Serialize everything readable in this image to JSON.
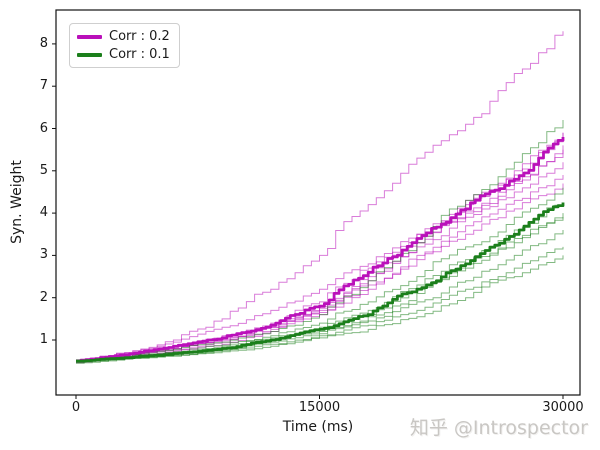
{
  "figure": {
    "background": "#ffffff"
  },
  "watermark": {
    "text": "知乎 @Introspector",
    "color": "#c9c7c4"
  },
  "chart_data": {
    "type": "line",
    "subtype": "step",
    "title": "",
    "xlabel": "Time (ms)",
    "ylabel": "Syn. Weight",
    "xlim": [
      -1300,
      31300
    ],
    "ylim": [
      -0.3,
      8.85
    ],
    "grid": false,
    "xticks": [
      0,
      15000,
      30000
    ],
    "xtick_labels": [
      "0",
      "15000",
      "30000"
    ],
    "yticks": [
      1,
      2,
      3,
      4,
      5,
      6,
      7,
      8
    ],
    "ytick_labels": [
      "1",
      "2",
      "3",
      "4",
      "5",
      "6",
      "7",
      "8"
    ],
    "legend": {
      "position": "upper-left",
      "entries": [
        {
          "label": "Corr : 0.2",
          "color": "#ba10ba"
        },
        {
          "label": "Corr : 0.1",
          "color": "#1b7f1b"
        }
      ]
    },
    "x_waypoints": [
      0,
      3000,
      6000,
      9000,
      12000,
      15000,
      18000,
      21000,
      24000,
      27000,
      30000
    ],
    "series": [
      {
        "name": "corr0.2-trial-1",
        "group": "Corr : 0.2",
        "color": "#ba10ba",
        "role": "trial",
        "values": [
          0.5,
          0.7,
          1.0,
          1.5,
          2.2,
          3.0,
          4.2,
          5.3,
          6.1,
          7.3,
          8.3
        ]
      },
      {
        "name": "corr0.2-trial-2",
        "group": "Corr : 0.2",
        "color": "#ba10ba",
        "role": "trial",
        "values": [
          0.48,
          0.7,
          0.95,
          1.3,
          1.7,
          2.2,
          2.8,
          3.5,
          4.3,
          5.0,
          5.9
        ]
      },
      {
        "name": "corr0.2-trial-3",
        "group": "Corr : 0.2",
        "color": "#ba10ba",
        "role": "trial",
        "values": [
          0.52,
          0.65,
          0.85,
          1.1,
          1.4,
          1.9,
          2.7,
          3.5,
          4.2,
          4.9,
          5.9
        ]
      },
      {
        "name": "corr0.2-trial-4",
        "group": "Corr : 0.2",
        "color": "#ba10ba",
        "role": "trial",
        "values": [
          0.5,
          0.6,
          0.8,
          1.0,
          1.3,
          1.75,
          2.5,
          3.3,
          4.0,
          4.7,
          5.6
        ]
      },
      {
        "name": "corr0.2-trial-5",
        "group": "Corr : 0.2",
        "color": "#ba10ba",
        "role": "trial",
        "values": [
          0.47,
          0.62,
          0.8,
          1.05,
          1.35,
          1.8,
          2.6,
          3.3,
          4.05,
          4.75,
          5.5
        ]
      },
      {
        "name": "corr0.2-trial-6",
        "group": "Corr : 0.2",
        "color": "#ba10ba",
        "role": "trial",
        "values": [
          0.53,
          0.6,
          0.78,
          1.0,
          1.3,
          1.7,
          2.4,
          3.2,
          3.9,
          4.5,
          5.2
        ]
      },
      {
        "name": "corr0.2-trial-7",
        "group": "Corr : 0.2",
        "color": "#ba10ba",
        "role": "trial",
        "values": [
          0.5,
          0.58,
          0.75,
          0.95,
          1.25,
          1.65,
          2.3,
          3.0,
          3.7,
          4.3,
          4.9
        ]
      },
      {
        "name": "corr0.2-trial-8",
        "group": "Corr : 0.2",
        "color": "#ba10ba",
        "role": "trial",
        "values": [
          0.46,
          0.58,
          0.72,
          0.9,
          1.2,
          1.6,
          2.2,
          2.9,
          3.5,
          4.1,
          4.7
        ]
      },
      {
        "name": "corr0.1-trial-1",
        "group": "Corr : 0.1",
        "color": "#1b7f1b",
        "role": "trial",
        "values": [
          0.5,
          0.62,
          0.78,
          0.95,
          1.2,
          1.6,
          2.4,
          3.3,
          4.3,
          5.2,
          6.2
        ]
      },
      {
        "name": "corr0.1-trial-2",
        "group": "Corr : 0.1",
        "color": "#1b7f1b",
        "role": "trial",
        "values": [
          0.48,
          0.6,
          0.72,
          0.88,
          1.1,
          1.4,
          1.9,
          2.5,
          3.2,
          3.9,
          4.6
        ]
      },
      {
        "name": "corr0.1-trial-3",
        "group": "Corr : 0.1",
        "color": "#1b7f1b",
        "role": "trial",
        "values": [
          0.52,
          0.58,
          0.7,
          0.85,
          1.05,
          1.3,
          1.7,
          2.3,
          2.9,
          3.6,
          4.25
        ]
      },
      {
        "name": "corr0.1-trial-4",
        "group": "Corr : 0.1",
        "color": "#1b7f1b",
        "role": "trial",
        "values": [
          0.5,
          0.58,
          0.68,
          0.82,
          1.0,
          1.25,
          1.6,
          2.2,
          2.8,
          3.4,
          4.0
        ]
      },
      {
        "name": "corr0.1-trial-5",
        "group": "Corr : 0.1",
        "color": "#1b7f1b",
        "role": "trial",
        "values": [
          0.47,
          0.57,
          0.67,
          0.8,
          1.0,
          1.2,
          1.55,
          2.1,
          2.7,
          3.3,
          3.9
        ]
      },
      {
        "name": "corr0.1-trial-6",
        "group": "Corr : 0.1",
        "color": "#1b7f1b",
        "role": "trial",
        "values": [
          0.53,
          0.56,
          0.65,
          0.78,
          0.95,
          1.15,
          1.45,
          1.9,
          2.4,
          3.0,
          3.6
        ]
      },
      {
        "name": "corr0.1-trial-7",
        "group": "Corr : 0.1",
        "color": "#1b7f1b",
        "role": "trial",
        "values": [
          0.5,
          0.55,
          0.63,
          0.75,
          0.9,
          1.1,
          1.35,
          1.7,
          2.2,
          2.7,
          3.2
        ]
      },
      {
        "name": "corr0.1-trial-8",
        "group": "Corr : 0.1",
        "color": "#1b7f1b",
        "role": "trial",
        "values": [
          0.45,
          0.55,
          0.62,
          0.72,
          0.85,
          1.05,
          1.25,
          1.55,
          2.0,
          2.5,
          3.0
        ]
      },
      {
        "name": "corr0.2-mean",
        "group": "Corr : 0.2",
        "color": "#ba10ba",
        "role": "mean",
        "values": [
          0.5,
          0.65,
          0.85,
          1.05,
          1.35,
          1.8,
          2.6,
          3.4,
          4.1,
          4.8,
          5.8
        ]
      },
      {
        "name": "corr0.1-mean",
        "group": "Corr : 0.1",
        "color": "#1b7f1b",
        "role": "mean",
        "values": [
          0.5,
          0.58,
          0.68,
          0.8,
          1.0,
          1.25,
          1.6,
          2.2,
          2.8,
          3.5,
          4.25
        ]
      }
    ]
  }
}
